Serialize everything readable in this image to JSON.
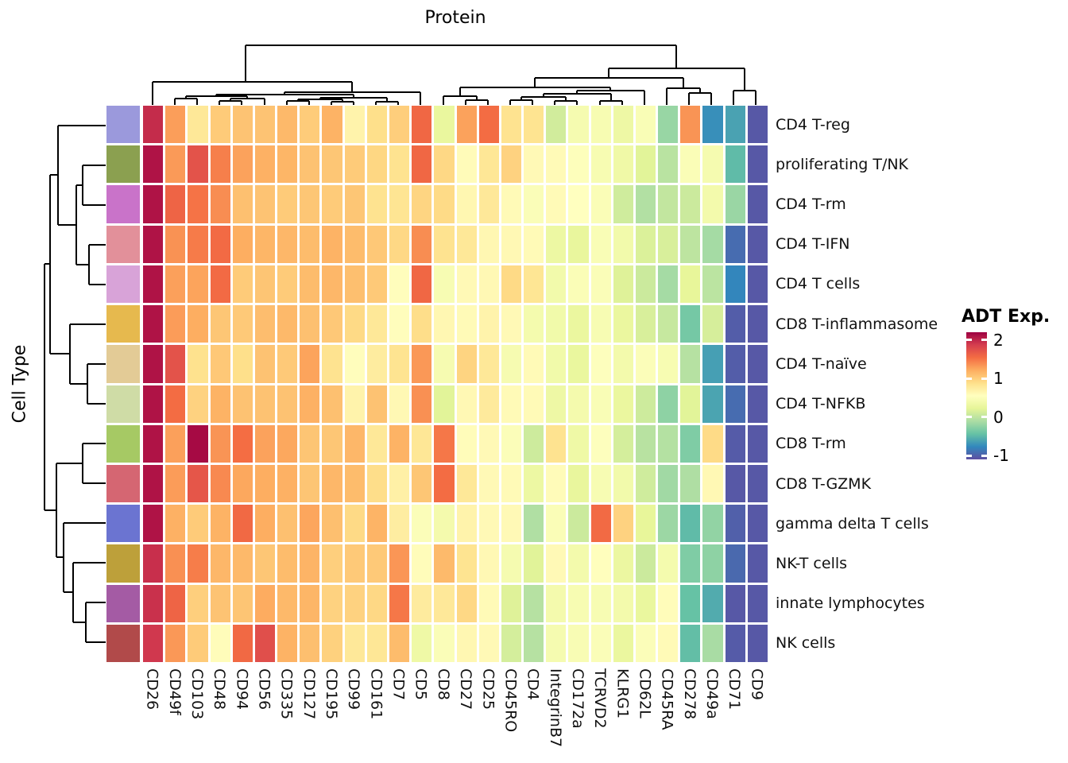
{
  "figure": {
    "title": "Protein",
    "row_axis_title": "Cell Type"
  },
  "legend": {
    "title": "ADT Exp.",
    "tick_labels": [
      "2",
      "1",
      "0",
      "-1"
    ],
    "tick_values": [
      2,
      1,
      0,
      -1
    ]
  },
  "chart_data": {
    "type": "heatmap",
    "title": "Protein",
    "row_axis_label": "Cell Type",
    "legend_title": "ADT Exp.",
    "columns": [
      "CD26",
      "CD49f",
      "CD103",
      "CD48",
      "CD94",
      "CD56",
      "CD335",
      "CD127",
      "CD195",
      "CD99",
      "CD161",
      "CD7",
      "CD5",
      "CD8",
      "CD27",
      "CD25",
      "CD45RO",
      "CD4",
      "IntegrinB7",
      "CD172a",
      "TCRVD2",
      "KLRG1",
      "CD62L",
      "CD45RA",
      "CD278",
      "CD49a",
      "CD71",
      "CD9"
    ],
    "rows": [
      "CD4 T-reg",
      "proliferating T/NK",
      "CD4 T-rm",
      "CD4 T-IFN",
      "CD4 T cells",
      "CD8 T-inflammasome",
      "CD4 T-naïve",
      "CD4 T-NFKB",
      "CD8 T-rm",
      "CD8 T-GZMK",
      "gamma delta T cells",
      "NK-T cells",
      "innate lymphocytes",
      "NK cells"
    ],
    "row_annotation_colors": [
      "#9b99dc",
      "#8ba050",
      "#c973c9",
      "#e2909a",
      "#d8a3d8",
      "#e6b94e",
      "#e3cb96",
      "#cfdca6",
      "#a6c964",
      "#d56672",
      "#6b74d1",
      "#bda03a",
      "#a45ba4",
      "#b14a4a"
    ],
    "values": [
      [
        1.97,
        1.29,
        0.8,
        1.02,
        1.07,
        1.07,
        1.14,
        1.01,
        1.18,
        0.68,
        0.88,
        1.0,
        1.58,
        0.27,
        1.27,
        1.55,
        0.85,
        0.84,
        0.1,
        0.42,
        0.44,
        0.33,
        0.47,
        -0.2,
        1.34,
        -0.73,
        -0.62,
        -1.05
      ],
      [
        2.1,
        1.31,
        1.72,
        1.45,
        1.27,
        1.19,
        1.16,
        1.08,
        1.05,
        1.02,
        0.94,
        0.85,
        1.58,
        0.93,
        0.59,
        0.81,
        0.97,
        0.61,
        0.6,
        0.52,
        0.44,
        0.35,
        0.2,
        -0.03,
        0.48,
        0.42,
        -0.48,
        -1.05
      ],
      [
        2.1,
        1.6,
        1.51,
        1.38,
        1.09,
        1.07,
        1.02,
        1.05,
        1.02,
        1.05,
        0.85,
        0.83,
        0.95,
        0.91,
        0.64,
        0.79,
        0.6,
        0.49,
        0.6,
        0.55,
        0.48,
        0.09,
        -0.07,
        0.02,
        0.07,
        0.39,
        -0.19,
        -1.05
      ],
      [
        2.1,
        1.35,
        1.47,
        1.56,
        1.21,
        1.16,
        1.15,
        1.12,
        1.18,
        1.12,
        1.04,
        0.93,
        1.38,
        0.85,
        0.8,
        0.63,
        0.62,
        0.6,
        0.31,
        0.26,
        0.47,
        0.38,
        0.16,
        0.14,
        -0.01,
        -0.14,
        -0.93,
        -1.05
      ],
      [
        2.1,
        1.28,
        1.26,
        1.56,
        1.02,
        1.06,
        1.02,
        1.12,
        1.15,
        1.1,
        1.03,
        0.57,
        1.58,
        0.45,
        0.61,
        0.62,
        0.92,
        0.82,
        0.38,
        0.48,
        0.49,
        0.18,
        0.07,
        -0.14,
        0.24,
        -0.02,
        -0.78,
        -1.05
      ],
      [
        2.1,
        1.3,
        1.21,
        1.05,
        1.03,
        1.11,
        1.14,
        1.09,
        1.04,
        0.92,
        0.8,
        0.57,
        0.89,
        0.63,
        0.6,
        0.68,
        0.61,
        0.41,
        0.37,
        0.28,
        0.45,
        0.28,
        0.14,
        0.04,
        -0.37,
        0.13,
        -1.02,
        -1.05
      ],
      [
        2.1,
        1.72,
        0.86,
        1.04,
        0.88,
        1.08,
        1.03,
        1.26,
        0.85,
        0.57,
        0.75,
        0.84,
        1.32,
        0.43,
        0.96,
        0.8,
        0.43,
        0.6,
        0.37,
        0.27,
        0.53,
        0.39,
        0.5,
        0.44,
        -0.05,
        -0.64,
        -1.02,
        -1.05
      ],
      [
        2.1,
        1.55,
        0.97,
        1.18,
        1.08,
        1.08,
        1.08,
        1.19,
        1.09,
        0.68,
        1.08,
        0.62,
        1.36,
        0.2,
        0.62,
        0.77,
        0.6,
        0.6,
        0.33,
        0.4,
        0.47,
        0.28,
        0.08,
        -0.25,
        0.2,
        -0.61,
        -0.93,
        -1.05
      ],
      [
        2.1,
        1.28,
        2.15,
        1.34,
        1.54,
        1.27,
        1.24,
        1.06,
        1.05,
        1.15,
        0.8,
        1.18,
        0.81,
        1.49,
        0.58,
        0.61,
        0.5,
        0.08,
        0.85,
        0.34,
        0.53,
        0.12,
        -0.04,
        -0.06,
        -0.32,
        0.91,
        -1.03,
        -1.05
      ],
      [
        2.1,
        1.3,
        1.7,
        1.4,
        1.24,
        1.21,
        1.19,
        1.06,
        1.15,
        1.12,
        0.89,
        0.71,
        1.05,
        1.55,
        0.8,
        0.61,
        0.6,
        0.31,
        0.59,
        0.26,
        0.45,
        0.38,
        0.09,
        -0.16,
        -0.09,
        0.62,
        -1.05,
        -1.05
      ],
      [
        2.1,
        1.19,
        1.02,
        1.18,
        1.57,
        1.21,
        1.09,
        1.25,
        1.1,
        0.92,
        1.17,
        0.74,
        0.5,
        0.4,
        0.68,
        0.61,
        0.61,
        -0.08,
        0.48,
        0.07,
        1.56,
        0.97,
        0.24,
        -0.18,
        -0.48,
        -0.23,
        -1.0,
        -1.05
      ],
      [
        1.95,
        1.36,
        1.46,
        1.15,
        1.14,
        1.05,
        1.12,
        1.17,
        0.99,
        1.03,
        1.03,
        1.33,
        0.58,
        1.13,
        0.84,
        0.62,
        0.42,
        0.19,
        0.61,
        0.39,
        0.56,
        0.3,
        0.07,
        0.41,
        -0.32,
        -0.25,
        -0.95,
        -1.05
      ],
      [
        1.94,
        1.6,
        0.99,
        1.07,
        1.06,
        1.22,
        1.14,
        1.16,
        0.97,
        0.97,
        0.93,
        1.49,
        0.76,
        0.79,
        0.93,
        0.6,
        0.18,
        -0.05,
        0.4,
        0.44,
        0.45,
        0.39,
        0.27,
        0.58,
        -0.44,
        -0.57,
        -1.05,
        -1.05
      ],
      [
        1.9,
        1.32,
        1.02,
        0.58,
        1.57,
        1.75,
        1.18,
        1.1,
        0.98,
        0.79,
        0.81,
        1.12,
        0.34,
        0.49,
        0.63,
        0.61,
        0.12,
        -0.05,
        0.42,
        0.46,
        0.49,
        0.28,
        0.5,
        0.6,
        -0.46,
        -0.12,
        -1.03,
        -1.05
      ]
    ],
    "color_scale": {
      "name": "spectral-reversed",
      "domain": [
        -1.1,
        2.2
      ],
      "legend_ticks": [
        2,
        1,
        0,
        -1
      ],
      "stops": [
        "#5e4fa2",
        "#3288bd",
        "#66c2a5",
        "#abdda4",
        "#e6f598",
        "#ffffbf",
        "#fee08b",
        "#fdae61",
        "#f46d43",
        "#d53e4f",
        "#9e0142"
      ]
    },
    "dendrograms": {
      "top_segments": [
        [
          220,
          132,
          220,
          124
        ],
        [
          248,
          132,
          248,
          124
        ],
        [
          220,
          124,
          248,
          124
        ],
        [
          276,
          132,
          276,
          127
        ],
        [
          304,
          132,
          304,
          127
        ],
        [
          276,
          127,
          304,
          127
        ],
        [
          290,
          127,
          290,
          124
        ],
        [
          333,
          132,
          333,
          124
        ],
        [
          290,
          124,
          333,
          124
        ],
        [
          234,
          124,
          234,
          121
        ],
        [
          311,
          124,
          311,
          121
        ],
        [
          234,
          121,
          311,
          121
        ],
        [
          361,
          132,
          361,
          127
        ],
        [
          389,
          132,
          389,
          127
        ],
        [
          361,
          127,
          389,
          127
        ],
        [
          417,
          132,
          417,
          128
        ],
        [
          445,
          132,
          445,
          128
        ],
        [
          417,
          128,
          445,
          128
        ],
        [
          375,
          127,
          375,
          125
        ],
        [
          431,
          128,
          431,
          125
        ],
        [
          375,
          125,
          431,
          125
        ],
        [
          473,
          132,
          473,
          128
        ],
        [
          501,
          132,
          501,
          128
        ],
        [
          473,
          128,
          501,
          128
        ],
        [
          403,
          125,
          403,
          123
        ],
        [
          487,
          128,
          487,
          123
        ],
        [
          403,
          123,
          487,
          123
        ],
        [
          272,
          121,
          272,
          119
        ],
        [
          445,
          123,
          445,
          119
        ],
        [
          272,
          119,
          445,
          119
        ],
        [
          358,
          119,
          358,
          116
        ],
        [
          529,
          132,
          529,
          116
        ],
        [
          358,
          116,
          529,
          116
        ],
        [
          192,
          132,
          192,
          103
        ],
        [
          443,
          116,
          443,
          103
        ],
        [
          192,
          103,
          443,
          103
        ],
        [
          309,
          103,
          309,
          57
        ],
        [
          586,
          132,
          586,
          126
        ],
        [
          614,
          132,
          614,
          126
        ],
        [
          586,
          126,
          614,
          126
        ],
        [
          558,
          132,
          558,
          121
        ],
        [
          600,
          126,
          600,
          121
        ],
        [
          558,
          121,
          600,
          121
        ],
        [
          642,
          132,
          642,
          126
        ],
        [
          670,
          132,
          670,
          126
        ],
        [
          642,
          126,
          670,
          126
        ],
        [
          698,
          132,
          698,
          127
        ],
        [
          726,
          132,
          726,
          127
        ],
        [
          698,
          127,
          726,
          127
        ],
        [
          656,
          126,
          656,
          122
        ],
        [
          712,
          127,
          712,
          122
        ],
        [
          656,
          122,
          712,
          122
        ],
        [
          755,
          132,
          755,
          127
        ],
        [
          783,
          132,
          783,
          127
        ],
        [
          755,
          127,
          783,
          127
        ],
        [
          684,
          122,
          684,
          118
        ],
        [
          769,
          127,
          769,
          118
        ],
        [
          684,
          118,
          769,
          118
        ],
        [
          726,
          118,
          726,
          114
        ],
        [
          811,
          132,
          811,
          114
        ],
        [
          726,
          114,
          811,
          114
        ],
        [
          579,
          121,
          579,
          110
        ],
        [
          768,
          114,
          768,
          110
        ],
        [
          579,
          110,
          768,
          110
        ],
        [
          867,
          132,
          867,
          117
        ],
        [
          895,
          132,
          895,
          117
        ],
        [
          867,
          117,
          895,
          117
        ],
        [
          839,
          132,
          839,
          111
        ],
        [
          881,
          117,
          881,
          111
        ],
        [
          839,
          111,
          881,
          111
        ],
        [
          673,
          110,
          673,
          98
        ],
        [
          860,
          111,
          860,
          98
        ],
        [
          673,
          98,
          860,
          98
        ],
        [
          923,
          132,
          923,
          114
        ],
        [
          951,
          132,
          951,
          114
        ],
        [
          923,
          114,
          951,
          114
        ],
        [
          766,
          98,
          766,
          86
        ],
        [
          937,
          114,
          937,
          86
        ],
        [
          766,
          86,
          937,
          86
        ],
        [
          851,
          86,
          851,
          57
        ],
        [
          309,
          57,
          851,
          57
        ]
      ],
      "left_segments": [
        [
          73,
          158,
          133,
          158
        ],
        [
          104,
          208,
          133,
          208
        ],
        [
          104,
          258,
          133,
          258
        ],
        [
          104,
          208,
          104,
          258
        ],
        [
          96,
          233,
          104,
          233
        ],
        [
          112,
          308,
          133,
          308
        ],
        [
          112,
          358,
          133,
          358
        ],
        [
          112,
          308,
          112,
          358
        ],
        [
          96,
          333,
          112,
          333
        ],
        [
          96,
          233,
          96,
          333
        ],
        [
          73,
          283,
          96,
          283
        ],
        [
          73,
          158,
          73,
          283
        ],
        [
          63,
          220,
          73,
          220
        ],
        [
          88,
          408,
          133,
          408
        ],
        [
          110,
          458,
          133,
          458
        ],
        [
          110,
          508,
          133,
          508
        ],
        [
          110,
          458,
          110,
          508
        ],
        [
          88,
          483,
          110,
          483
        ],
        [
          88,
          408,
          88,
          483
        ],
        [
          63,
          445,
          88,
          445
        ],
        [
          63,
          220,
          63,
          445
        ],
        [
          56,
          332,
          63,
          332
        ],
        [
          104,
          558,
          133,
          558
        ],
        [
          104,
          608,
          133,
          608
        ],
        [
          104,
          558,
          104,
          608
        ],
        [
          71,
          583,
          104,
          583
        ],
        [
          80,
          658,
          133,
          658
        ],
        [
          92,
          708,
          133,
          708
        ],
        [
          108,
          758,
          133,
          758
        ],
        [
          108,
          808,
          133,
          808
        ],
        [
          108,
          758,
          108,
          808
        ],
        [
          92,
          783,
          108,
          783
        ],
        [
          92,
          708,
          92,
          783
        ],
        [
          80,
          745,
          92,
          745
        ],
        [
          80,
          658,
          80,
          745
        ],
        [
          71,
          701,
          80,
          701
        ],
        [
          71,
          583,
          71,
          701
        ],
        [
          56,
          642,
          71,
          642
        ],
        [
          56,
          332,
          56,
          642
        ]
      ]
    }
  }
}
